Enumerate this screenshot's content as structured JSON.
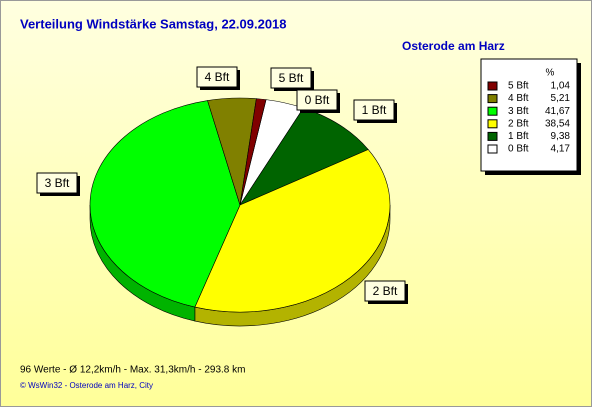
{
  "chart_data": {
    "type": "pie",
    "title": "Verteilung Windstärke  Samstag, 22.09.2018",
    "subtitle": "Osterode am Harz",
    "legend_header": "%",
    "categories": [
      "5 Bft",
      "4 Bft",
      "3 Bft",
      "2 Bft",
      "1 Bft",
      "0 Bft"
    ],
    "values": [
      1.04,
      5.21,
      41.67,
      38.54,
      9.38,
      4.17
    ],
    "value_labels": [
      "1,04",
      "5,21",
      "41,67",
      "38,54",
      "9,38",
      "4,17"
    ],
    "colors": [
      "#800000",
      "#808000",
      "#00ff00",
      "#ffff00",
      "#006400",
      "#ffffff"
    ],
    "footer": "96 Werte   -   Ø 12,2km/h   -   Max. 31,3km/h   -   293.8 km",
    "credit": "© WsWin32  -  Osterode am Harz, City"
  }
}
